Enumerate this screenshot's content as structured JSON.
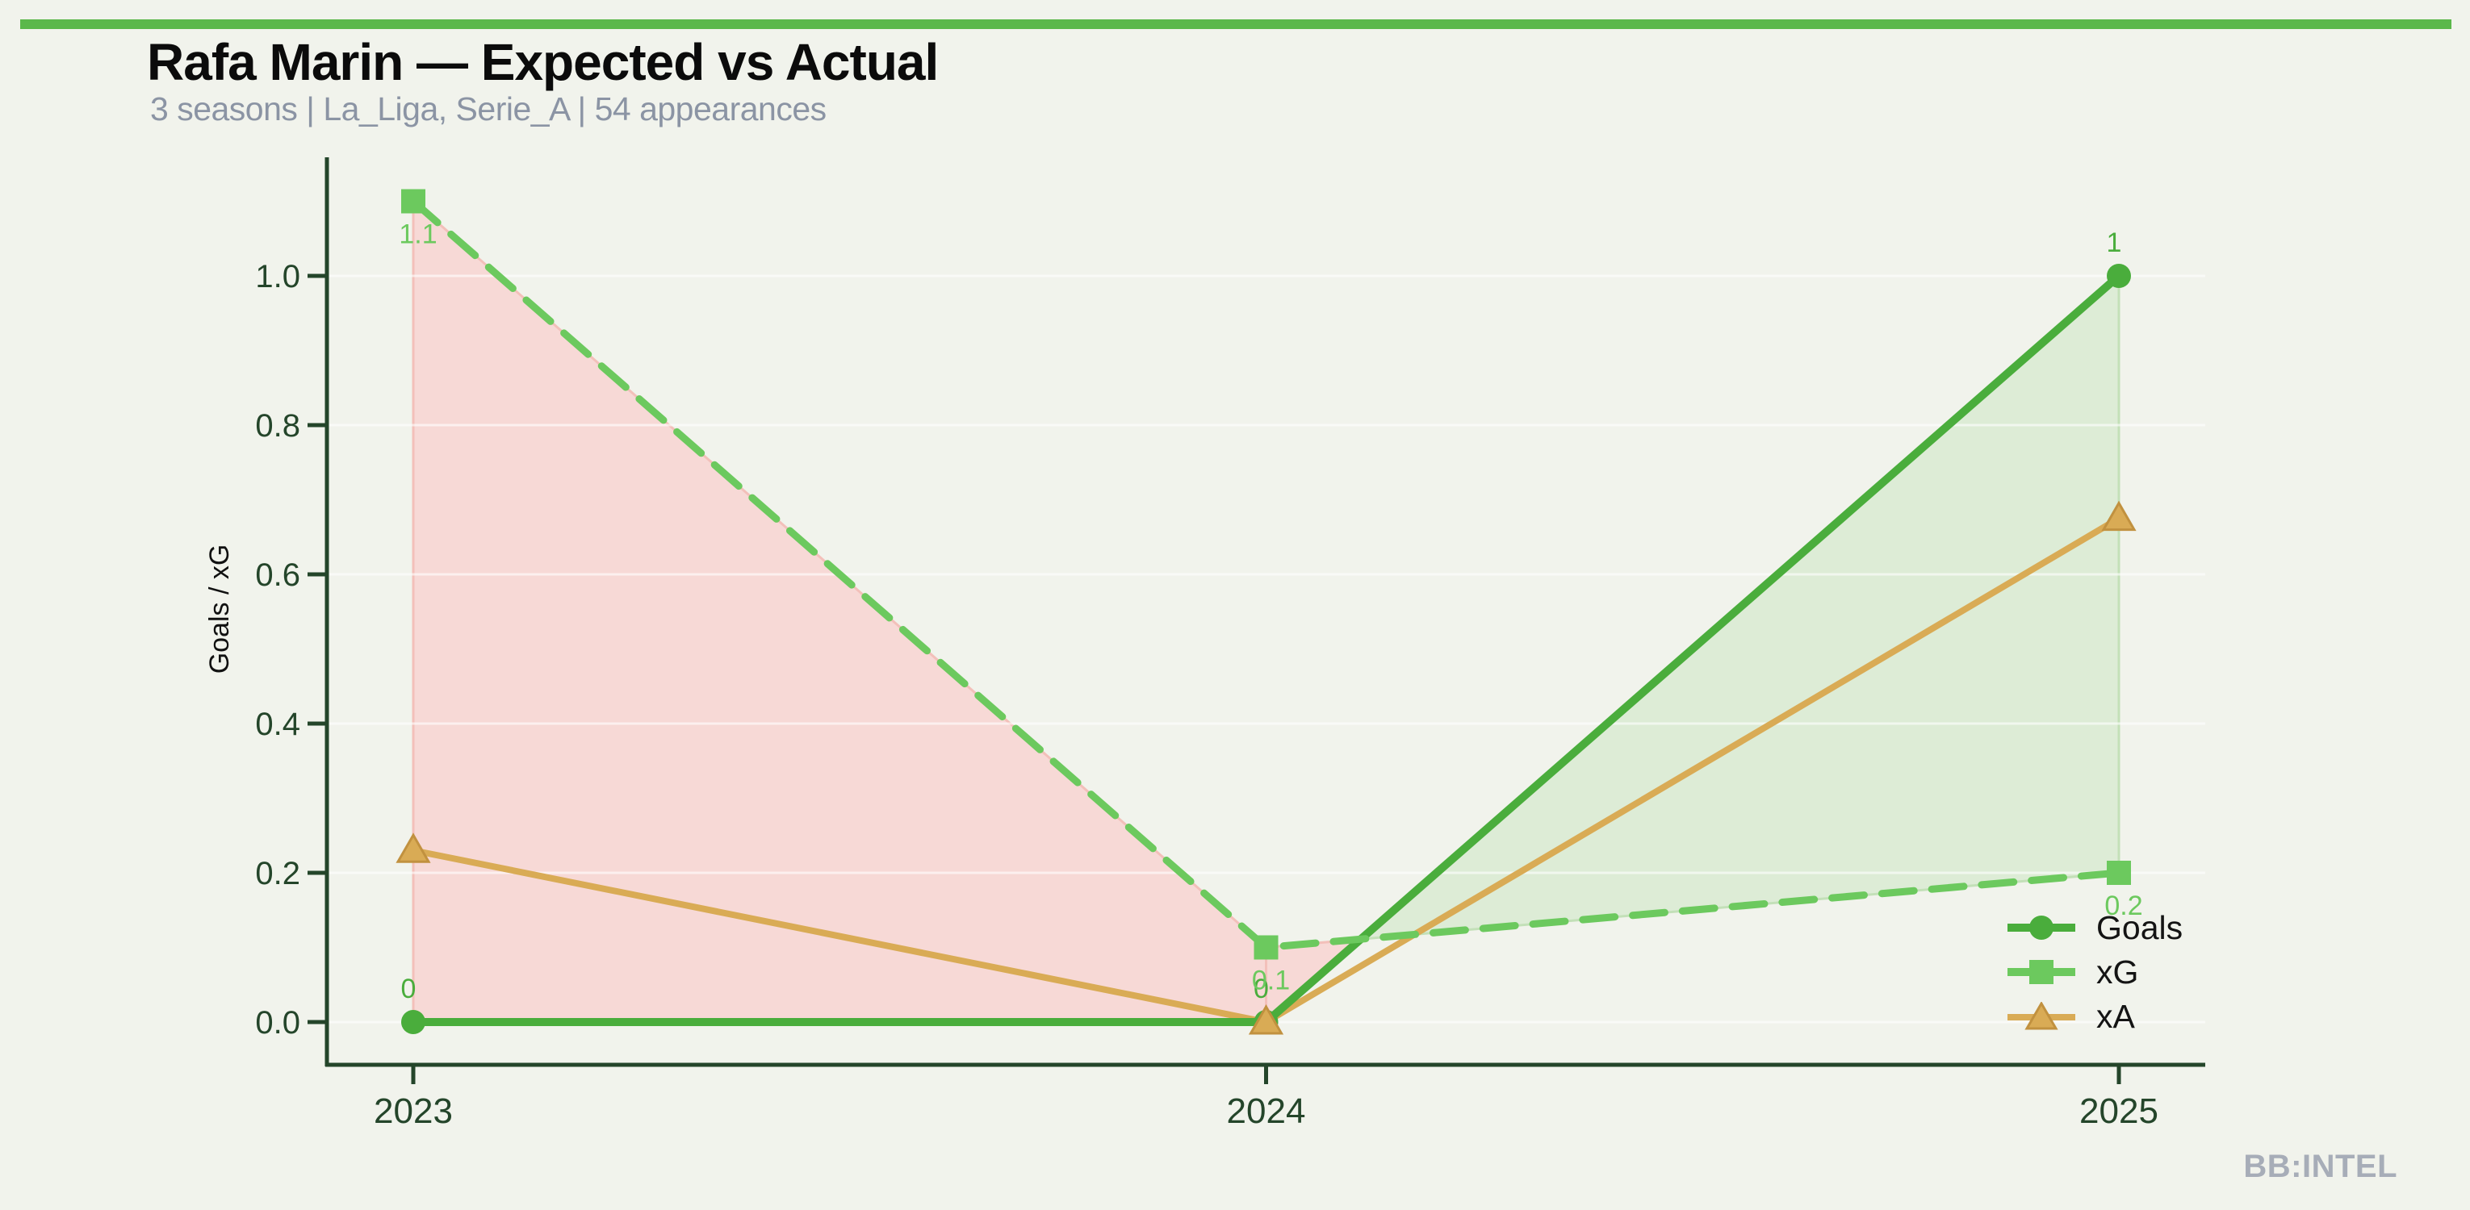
{
  "page": {
    "background": "#f1f3ec",
    "topbar_color": "#5bb84b",
    "watermark": "BB:INTEL"
  },
  "header": {
    "title": "Rafa Marin — Expected vs Actual",
    "subtitle": "3 seasons | La_Liga, Serie_A | 54 appearances"
  },
  "chart_data": {
    "type": "line",
    "title": "Rafa Marin — Expected vs Actual",
    "subtitle": "3 seasons | La_Liga, Serie_A | 54 appearances",
    "categories": [
      "2023",
      "2024",
      "2025"
    ],
    "series": [
      {
        "name": "Goals",
        "color": "#4aad3c",
        "marker": "circle",
        "dashed": false,
        "line_width": 10,
        "values": [
          0,
          0,
          1
        ],
        "point_labels": [
          "0",
          "0",
          "1"
        ],
        "label_position": "above"
      },
      {
        "name": "xG",
        "color": "#6cc95e",
        "marker": "square",
        "dashed": true,
        "line_width": 9,
        "values": [
          1.1,
          0.1,
          0.2
        ],
        "point_labels": [
          "1.1",
          "0.1",
          "0.2"
        ],
        "label_position": "below"
      },
      {
        "name": "xA",
        "color": "#d9ab55",
        "marker_stroke": "#c1913f",
        "marker": "triangle",
        "dashed": false,
        "line_width": 8,
        "values": [
          0.23,
          0,
          0.675
        ],
        "point_labels": null,
        "label_position": null
      }
    ],
    "xlabel": "",
    "ylabel": "Goals / xG",
    "yticks": [
      "0.0",
      "0.2",
      "0.4",
      "0.6",
      "0.8",
      "1.0"
    ],
    "ylim": [
      0,
      1.16
    ],
    "grid": "horizontal faint white lines at each y tick",
    "legend_position": "lower right",
    "axis_color": "#24452a",
    "tick_label_color": "#24452a",
    "fill_between": {
      "description": "area between Goals and xG; green where Goals > xG, red where xG > Goals",
      "positive_color": "#ddecd6",
      "positive_stroke": "#c3e0b8",
      "negative_color": "#f7d9d6",
      "negative_stroke": "#f3c0ba"
    }
  }
}
